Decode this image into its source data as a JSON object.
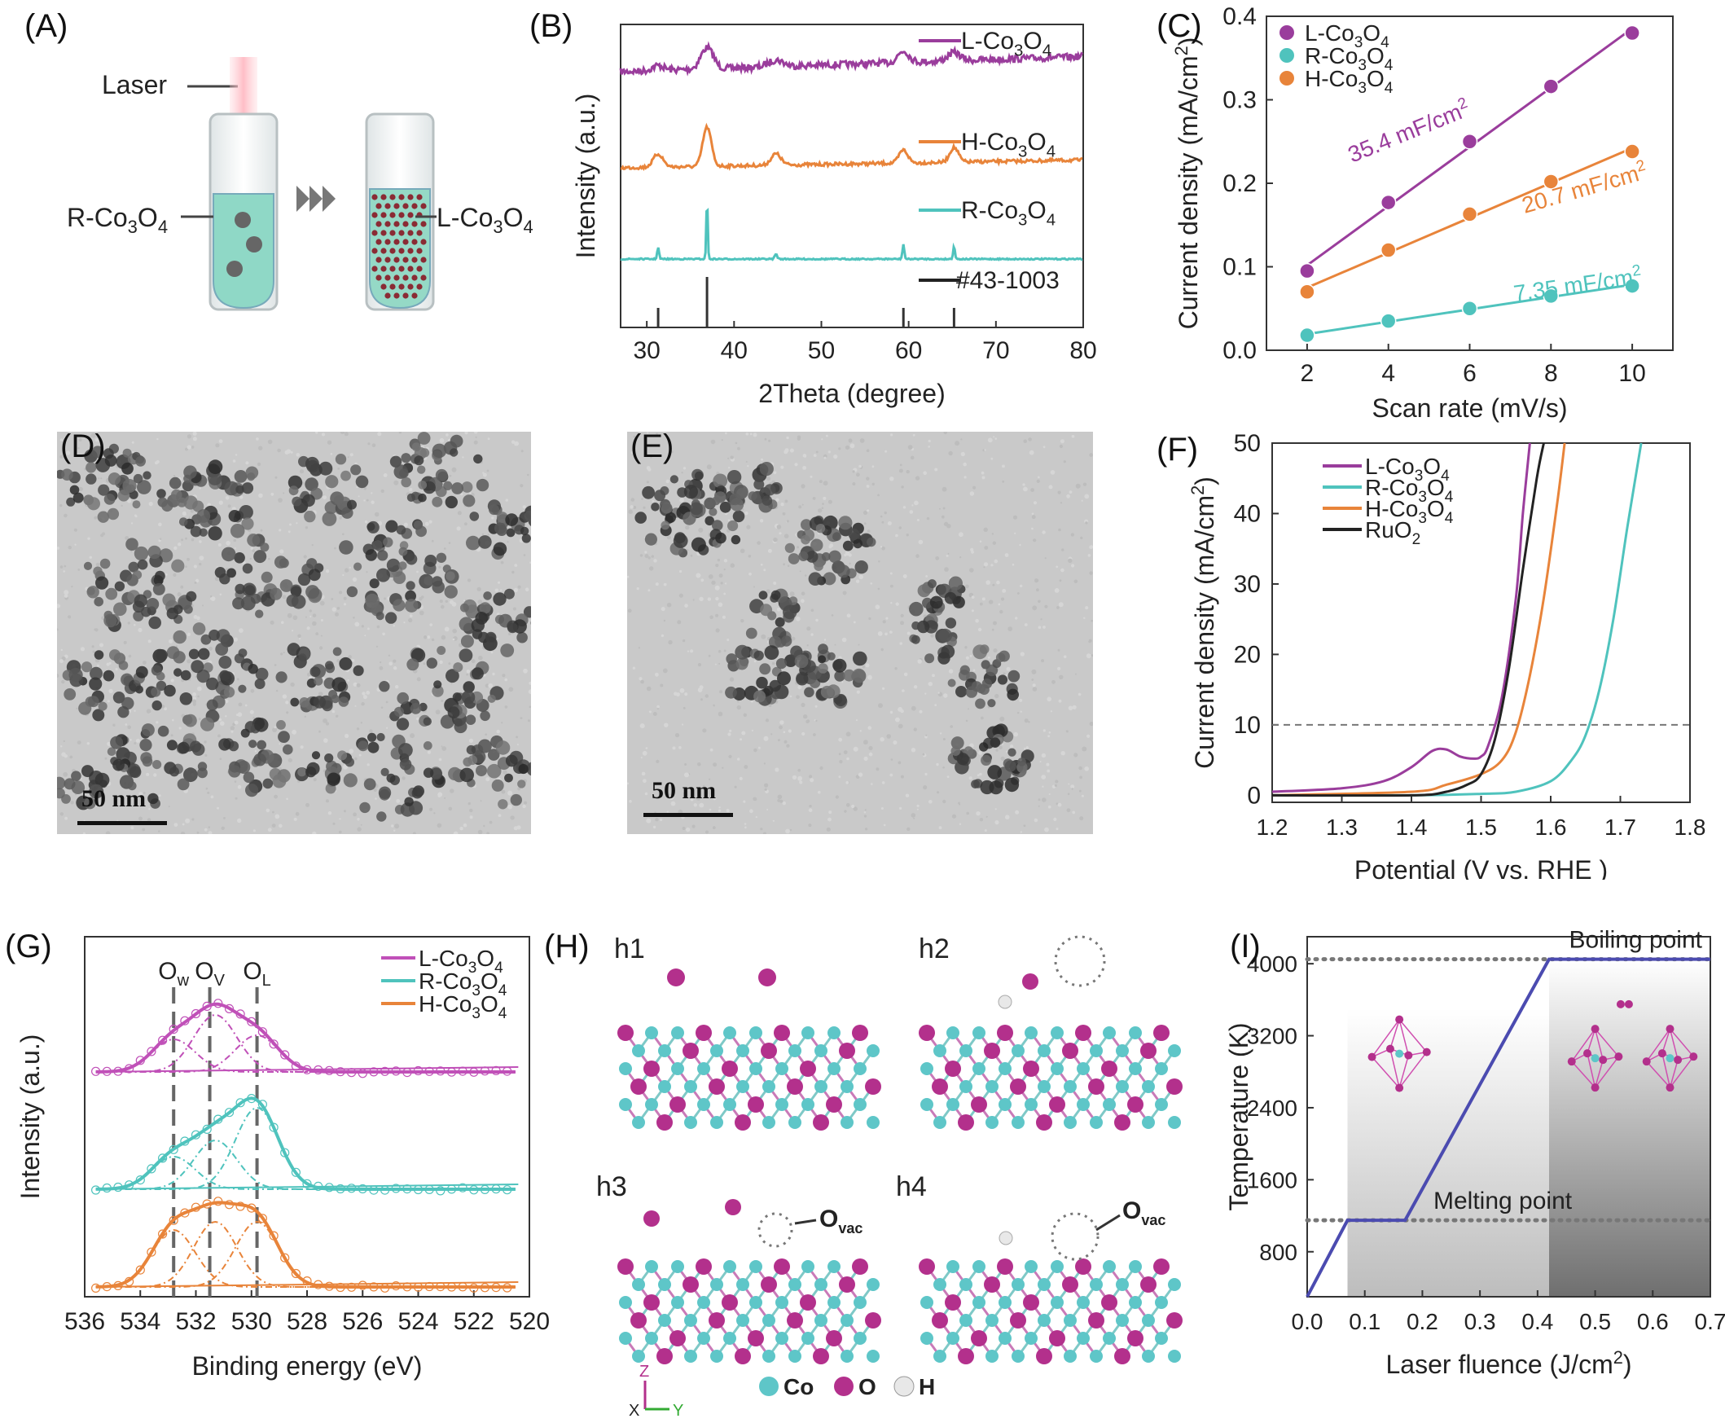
{
  "panel_labels": {
    "A": "(A)",
    "B": "(B)",
    "C": "(C)",
    "D": "(D)",
    "E": "(E)",
    "F": "(F)",
    "G": "(G)",
    "H": "(H)",
    "I": "(I)"
  },
  "schematic_A": {
    "laser": "Laser",
    "left": "R-Co3O4",
    "right": "L-Co3O4"
  },
  "tem": {
    "D_scale": "50 nm",
    "E_scale": "50 nm"
  },
  "structure_H": {
    "frames": [
      "h1",
      "h2",
      "h3",
      "h4"
    ],
    "ovac_label": "O",
    "ovac_sub": "vac",
    "legend": [
      "Co",
      "O",
      "H"
    ],
    "axes": [
      "Z",
      "X",
      "Y"
    ],
    "colors": {
      "Co": "#5ec6c8",
      "O": "#b3308c",
      "H": "#e8e8e8"
    }
  },
  "chart_data": [
    {
      "panel": "B",
      "type": "line",
      "xlabel": "2Theta (degree)",
      "ylabel": "Intensity (a.u.)",
      "xlim": [
        27,
        80
      ],
      "xticks": [
        30,
        40,
        50,
        60,
        70,
        80
      ],
      "peaks": [
        31.3,
        36.9,
        44.8,
        59.4,
        65.2
      ],
      "series": [
        {
          "name": "L-Co3O4",
          "color": "#9a3d9c"
        },
        {
          "name": "H-Co3O4",
          "color": "#e8843a"
        },
        {
          "name": "R-Co3O4",
          "color": "#4fc3bd"
        },
        {
          "name": "#43-1003",
          "color": "#222222"
        }
      ]
    },
    {
      "panel": "C",
      "type": "scatter",
      "xlabel": "Scan rate (mV/s)",
      "ylabel": "Current density (mA/cm2)",
      "xlim": [
        1,
        11
      ],
      "ylim": [
        0,
        0.4
      ],
      "xticks": [
        2,
        4,
        6,
        8,
        10
      ],
      "yticks": [
        "0.0",
        "0.1",
        "0.2",
        "0.3",
        "0.4"
      ],
      "x": [
        2,
        4,
        6,
        8,
        10
      ],
      "series": [
        {
          "name": "L-Co3O4",
          "color": "#9a3d9c",
          "values": [
            0.095,
            0.177,
            0.25,
            0.316,
            0.38
          ],
          "slope_label": "35.4 mF/cm2"
        },
        {
          "name": "R-Co3O4",
          "color": "#4fc3bd",
          "values": [
            0.018,
            0.035,
            0.05,
            0.065,
            0.077
          ],
          "slope_label": "7.35 mF/cm2"
        },
        {
          "name": "H-Co3O4",
          "color": "#e8843a",
          "values": [
            0.07,
            0.12,
            0.163,
            0.202,
            0.238
          ],
          "slope_label": "20.7 mF/cm2"
        }
      ]
    },
    {
      "panel": "F",
      "type": "line",
      "xlabel": "Potential (V vs. RHE )",
      "ylabel": "Current density (mA/cm2)",
      "xlim": [
        1.2,
        1.8
      ],
      "ylim": [
        -1,
        50
      ],
      "xticks": [
        "1.2",
        "1.3",
        "1.4",
        "1.5",
        "1.6",
        "1.7",
        "1.8"
      ],
      "yticks": [
        0,
        10,
        20,
        30,
        40,
        50
      ],
      "reference_line": 10,
      "series": [
        {
          "name": "L-Co3O4",
          "color": "#9a3d9c",
          "x": [
            1.2,
            1.3,
            1.36,
            1.4,
            1.43,
            1.45,
            1.47,
            1.49,
            1.5,
            1.51,
            1.53,
            1.55,
            1.56,
            1.57
          ],
          "values": [
            0.5,
            1,
            2,
            4,
            6.3,
            6.5,
            5.5,
            5.2,
            5.5,
            7,
            14,
            28,
            40,
            50
          ]
        },
        {
          "name": "R-Co3O4",
          "color": "#4fc3bd",
          "x": [
            1.2,
            1.4,
            1.5,
            1.55,
            1.6,
            1.63,
            1.65,
            1.67,
            1.69,
            1.71,
            1.73
          ],
          "values": [
            0,
            0,
            0.2,
            0.5,
            2,
            5,
            8.5,
            15,
            25,
            38,
            50
          ]
        },
        {
          "name": "H-Co3O4",
          "color": "#e8843a",
          "x": [
            1.2,
            1.4,
            1.45,
            1.5,
            1.53,
            1.55,
            1.57,
            1.59,
            1.61,
            1.62
          ],
          "values": [
            0,
            0.5,
            1.5,
            3,
            5,
            9,
            17,
            28,
            42,
            50
          ]
        },
        {
          "name": "RuO2",
          "color": "#222222",
          "x": [
            1.2,
            1.4,
            1.45,
            1.48,
            1.5,
            1.52,
            1.54,
            1.56,
            1.58,
            1.59
          ],
          "values": [
            0,
            0,
            0.5,
            1.5,
            3,
            8,
            18,
            32,
            45,
            50
          ]
        }
      ]
    },
    {
      "panel": "G",
      "type": "line",
      "xlabel": "Binding energy (eV)",
      "ylabel": "Intensity (a.u.)",
      "xlim": [
        536,
        520
      ],
      "xticks": [
        536,
        534,
        532,
        530,
        528,
        526,
        524,
        522,
        520
      ],
      "peak_labels": [
        {
          "base": "O",
          "sub": "w",
          "x": 532.8
        },
        {
          "base": "O",
          "sub": "V",
          "x": 531.5
        },
        {
          "base": "O",
          "sub": "L",
          "x": 529.8
        }
      ],
      "series": [
        {
          "name": "L-Co3O4",
          "color": "#c050b8"
        },
        {
          "name": "R-Co3O4",
          "color": "#4fc3bd"
        },
        {
          "name": "H-Co3O4",
          "color": "#e8843a"
        }
      ]
    },
    {
      "panel": "I",
      "type": "line",
      "xlabel": "Laser fluence (J/cm2)",
      "ylabel": "Temperature (K)",
      "xlim": [
        0,
        0.7
      ],
      "ylim": [
        300,
        4300
      ],
      "xticks": [
        "0.0",
        "0.1",
        "0.2",
        "0.3",
        "0.4",
        "0.5",
        "0.6",
        "0.7"
      ],
      "yticks": [
        800,
        1600,
        2400,
        3200,
        4000
      ],
      "annotations": [
        "Boiling point",
        "Melting point"
      ],
      "boiling_point": 4050,
      "melting_point": 1150,
      "series": [
        {
          "x": [
            0.0,
            0.07,
            0.17,
            0.42,
            0.7
          ],
          "values": [
            300,
            1150,
            1150,
            4050,
            4050
          ],
          "color": "#4b4bb0"
        }
      ]
    }
  ]
}
